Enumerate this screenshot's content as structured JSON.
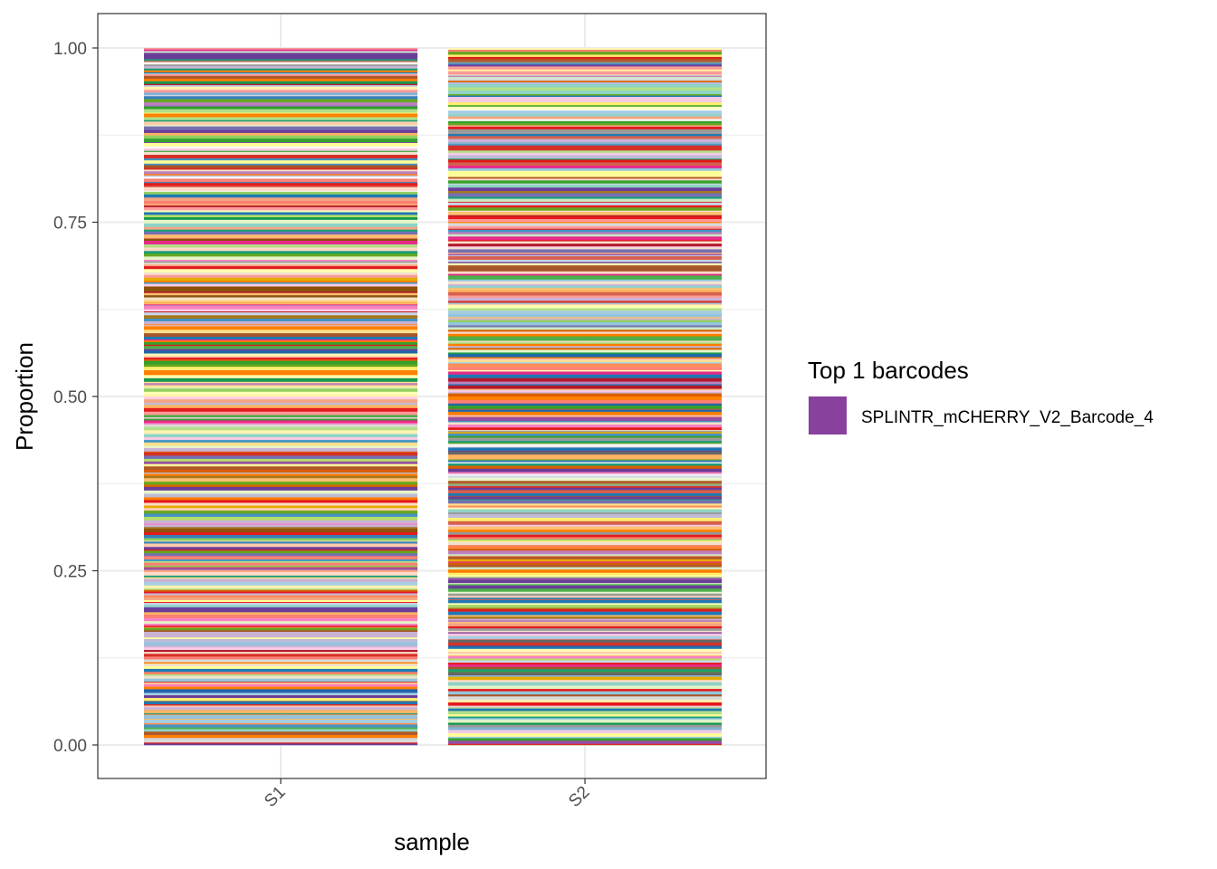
{
  "chart_data": {
    "type": "bar",
    "stacked": true,
    "position": "fill",
    "categories": [
      "S1",
      "S2"
    ],
    "xlabel": "sample",
    "ylabel": "Proportion",
    "ylim": [
      0,
      1
    ],
    "yticks": [
      0,
      0.25,
      0.5,
      0.75,
      1
    ],
    "ytick_labels": [
      "0.00",
      "0.25",
      "0.50",
      "0.75",
      "1.00"
    ],
    "grid": true,
    "theme": "bw",
    "x_tick_rotation_deg": 45,
    "totals": [
      1.0,
      1.0
    ],
    "highlighted_barcode": "SPLINTR_mCHERRY_V2_Barcode_4",
    "highlight_color": "#88419D",
    "stripe_palette": [
      "#A6CEE3",
      "#1F78B4",
      "#B2DF8A",
      "#33A02C",
      "#FB9A99",
      "#E31A1C",
      "#FDBF6F",
      "#FF7F00",
      "#CAB2D6",
      "#6A3D9A",
      "#FFFF99",
      "#B15928",
      "#1B9E77",
      "#D95F02",
      "#7570B3",
      "#E7298A",
      "#66A61E",
      "#E6AB02",
      "#A6761D",
      "#666666",
      "#8DD3C7",
      "#FFFFB3",
      "#BEBADA",
      "#FB8072",
      "#80B1D3",
      "#FDB462",
      "#B3DE69",
      "#FCCDE5",
      "#D9D9D9",
      "#BC80BD",
      "#CCEBC5",
      "#FFED6F",
      "#E41A1C",
      "#377EB8",
      "#4DAF4A",
      "#984EA3",
      "#FF7F00",
      "#A65628",
      "#F781BF",
      "#999999",
      "#F4A582",
      "#92C5DE",
      "#FDDBC7",
      "#D6604D",
      "#4393C3",
      "#2166AC",
      "#B2182B",
      "#F7F7F7",
      "#FFF2AE",
      "#E6F5C9",
      "#FDCDAC",
      "#CBD5E8",
      "#F4CAE4",
      "#F1E2CC",
      "#1A9850",
      "#91CF60",
      "#D73027",
      "#FC8D59",
      "#FEE08B",
      "#8C510A"
    ],
    "legend": {
      "title": "Top 1 barcodes",
      "position": "right",
      "entries": [
        {
          "name": "SPLINTR_mCHERRY_V2_Barcode_4",
          "color": "#88419D"
        }
      ]
    }
  }
}
